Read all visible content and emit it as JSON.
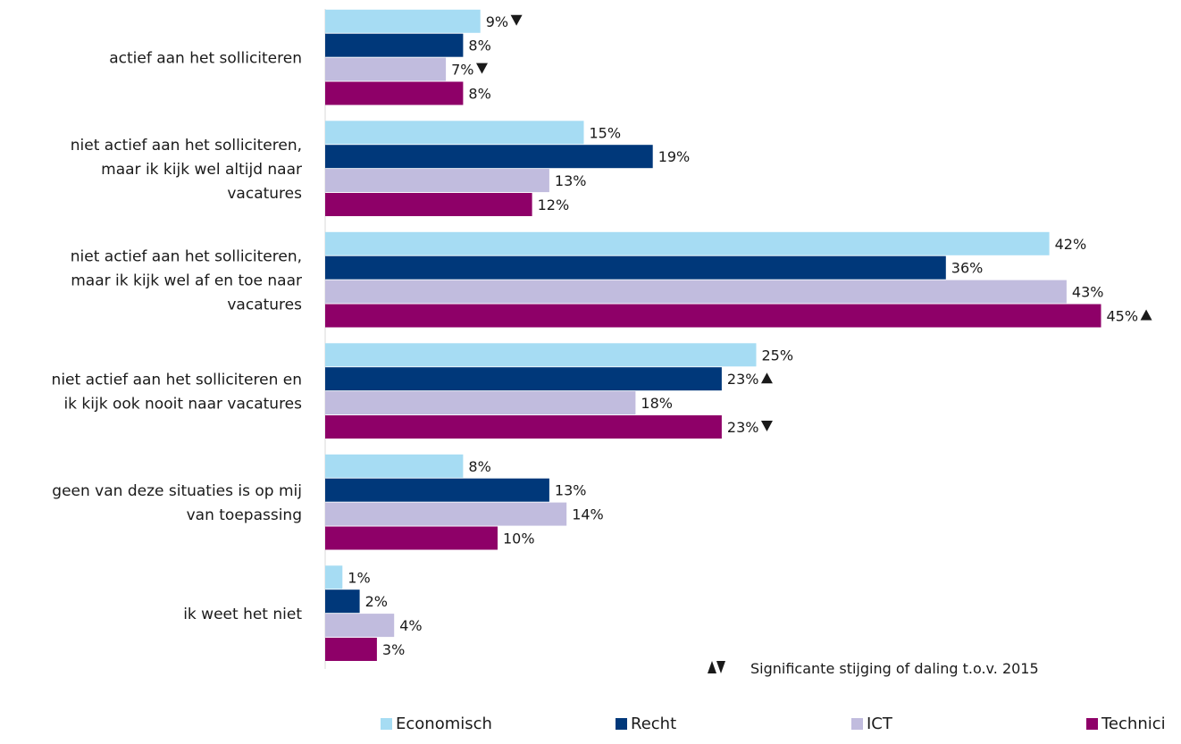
{
  "chart_data": {
    "type": "bar",
    "orientation": "horizontal",
    "title": "",
    "xlabel": "",
    "ylabel": "",
    "xlim": [
      0,
      48
    ],
    "grid": false,
    "legend_position": "bottom",
    "categories": [
      [
        "actief aan het solliciteren"
      ],
      [
        "niet actief aan het solliciteren,",
        "maar ik kijk wel altijd naar",
        "vacatures"
      ],
      [
        "niet actief aan het solliciteren,",
        "maar ik kijk wel af en toe naar",
        "vacatures"
      ],
      [
        "niet actief aan het solliciteren en",
        "ik kijk ook nooit naar vacatures"
      ],
      [
        "geen van deze situaties is op mij",
        "van toepassing"
      ],
      [
        "ik weet het niet"
      ]
    ],
    "series": [
      {
        "name": "Economisch",
        "color": "#a6dcf3",
        "values": [
          9,
          15,
          42,
          25,
          8,
          1
        ],
        "labels": [
          "9%",
          "15%",
          "42%",
          "25%",
          "8%",
          "1%"
        ],
        "markers": [
          "down",
          "",
          "",
          "",
          "",
          ""
        ]
      },
      {
        "name": "Recht",
        "color": "#00387a",
        "values": [
          8,
          19,
          36,
          23,
          13,
          2
        ],
        "labels": [
          "8%",
          "19%",
          "36%",
          "23%",
          "13%",
          "2%"
        ],
        "markers": [
          "",
          "",
          "",
          "up",
          "",
          ""
        ]
      },
      {
        "name": "ICT",
        "color": "#c1bcde",
        "values": [
          7,
          13,
          43,
          18,
          14,
          4
        ],
        "labels": [
          "7%",
          "13%",
          "43%",
          "18%",
          "14%",
          "4%"
        ],
        "markers": [
          "down",
          "",
          "",
          "",
          "",
          ""
        ]
      },
      {
        "name": "Technici",
        "color": "#8e0068",
        "values": [
          8,
          12,
          45,
          23,
          10,
          3
        ],
        "labels": [
          "8%",
          "12%",
          "45%",
          "23%",
          "10%",
          "3%"
        ],
        "markers": [
          "",
          "",
          "up",
          "down",
          "",
          ""
        ]
      }
    ],
    "note": "Significante stijging of daling t.o.v. 2015"
  }
}
